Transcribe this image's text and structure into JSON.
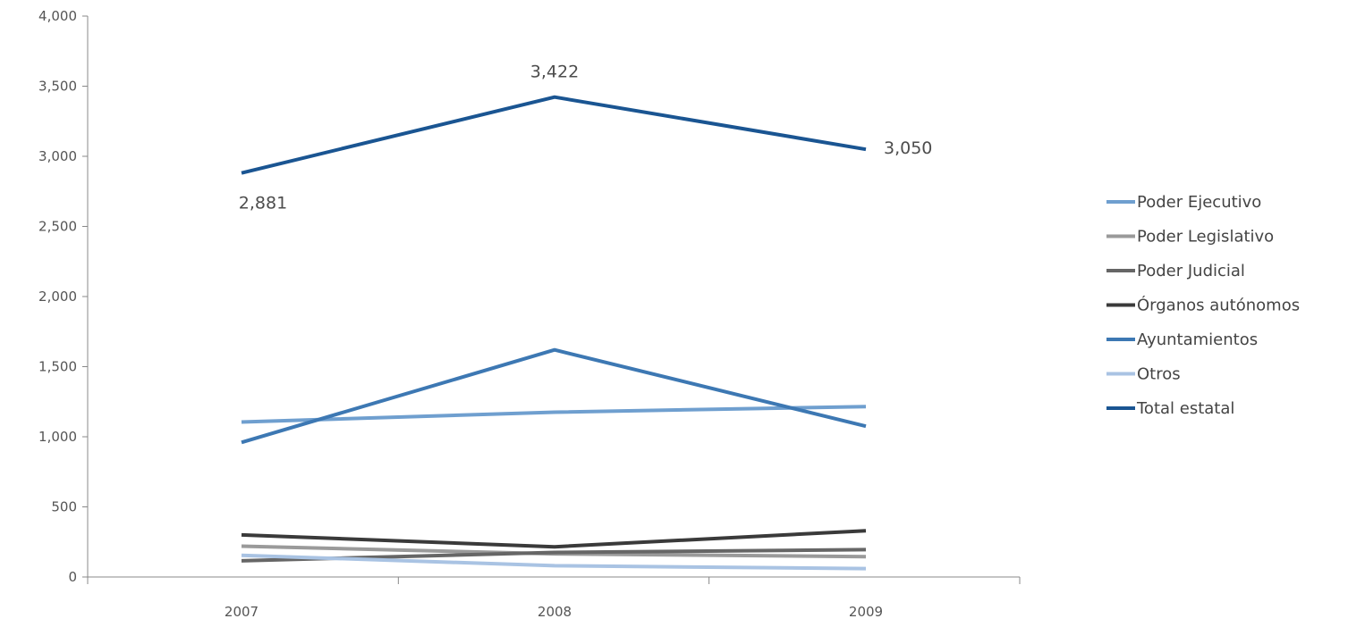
{
  "chart_data": {
    "type": "line",
    "categories": [
      "2007",
      "2008",
      "2009"
    ],
    "ylim": [
      0,
      4000
    ],
    "yticks": [
      0,
      500,
      1000,
      1500,
      2000,
      2500,
      3000,
      3500,
      4000
    ],
    "ytick_labels": [
      "0",
      "500",
      "1,000",
      "1,500",
      "2,000",
      "2,500",
      "3,000",
      "3,500",
      "4,000"
    ],
    "grid": false,
    "legend_position": "right",
    "series": [
      {
        "name": "Poder Ejecutivo",
        "values": [
          1105,
          1175,
          1215
        ],
        "color": "#6f9fcf"
      },
      {
        "name": "Poder Legislativo",
        "values": [
          220,
          165,
          145
        ],
        "color": "#9a9a9a"
      },
      {
        "name": "Poder Judicial",
        "values": [
          115,
          175,
          195
        ],
        "color": "#666666"
      },
      {
        "name": "Órganos autónomos",
        "values": [
          300,
          215,
          330
        ],
        "color": "#3a3a3a"
      },
      {
        "name": "Ayuntamientos",
        "values": [
          960,
          1620,
          1075
        ],
        "color": "#3d78b3"
      },
      {
        "name": "Otros",
        "values": [
          155,
          80,
          60
        ],
        "color": "#a9c3e3"
      },
      {
        "name": "Total estatal",
        "values": [
          2881,
          3422,
          3050
        ],
        "color": "#1a5592"
      }
    ],
    "annotations": [
      {
        "series": "Total estatal",
        "category": "2007",
        "text": "2,881",
        "placement": "below"
      },
      {
        "series": "Total estatal",
        "category": "2008",
        "text": "3,422",
        "placement": "above"
      },
      {
        "series": "Total estatal",
        "category": "2009",
        "text": "3,050",
        "placement": "right"
      }
    ]
  }
}
